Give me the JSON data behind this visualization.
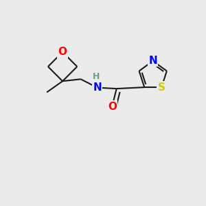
{
  "background_color": "#ebebeb",
  "atom_colors": {
    "O": "#ff0000",
    "N": "#0000ff",
    "S": "#cccc00",
    "C": "#1a1a1a",
    "H": "#6a9a9a"
  },
  "bond_color": "#1a1a1a",
  "bond_width": 1.5,
  "font_size_atom": 11,
  "font_size_small": 9,
  "figsize": [
    3.0,
    3.0
  ],
  "dpi": 100,
  "xlim": [
    0,
    10
  ],
  "ylim": [
    0,
    10
  ]
}
